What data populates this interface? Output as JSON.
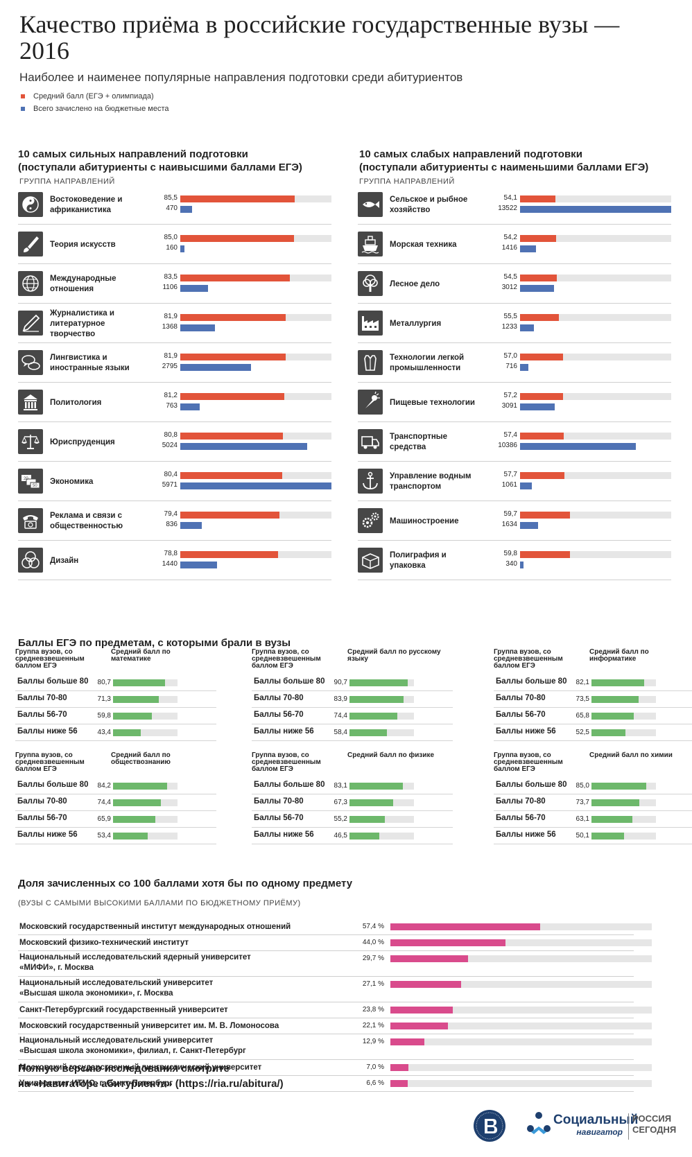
{
  "title": "Качество приёма в российские государственные вузы — 2016",
  "subtitle": "Наиболее и наименее популярные направления подготовки среди абитуриентов",
  "legend": {
    "score": "Средний балл (ЕГЭ + олимпиада)",
    "enrolled": "Всего зачислено на бюджетные места"
  },
  "colors": {
    "score": "#e2543a",
    "enrolled": "#4f72b4",
    "subject": "#6db86b",
    "share": "#d94b8c"
  },
  "strong": {
    "heading": "10 самых сильных направлений подготовки\n(поступали абитуриенты с наивысшими баллами ЕГЭ)",
    "group_label": "ГРУППА НАПРАВЛЕНИЙ"
  },
  "weak": {
    "heading": "10 самых слабых направлений подготовки\n(поступали абитуриенты с наименьшими баллами ЕГЭ)",
    "group_label": "ГРУППА НАПРАВЛЕНИЙ"
  },
  "subjects_heading": "Баллы ЕГЭ по предметам, с которыми брали в вузы",
  "universities": {
    "heading": "Доля зачисленных со 100 баллами хотя бы по одному предмету",
    "note": "(ВУЗЫ С САМЫМИ ВЫСОКИМИ БАЛЛАМИ ПО БЮДЖЕТНОМУ ПРИЁМУ)"
  },
  "footer": "Полную версию исследования смотрите\nна «Навигаторе абитуриента» (https://ria.ru/abitura/)",
  "logos": {
    "social_1": "Социальный",
    "social_2": "навигатор",
    "ria_1": "РОССИЯ",
    "ria_2": "СЕГОДНЯ"
  },
  "chart_data": [
    {
      "type": "bar",
      "title": "10 самых сильных направлений подготовки",
      "categories": [
        "Востоковедение и африканистика",
        "Теория искусств",
        "Международные отношения",
        "Журналистика и литературное творчество",
        "Лингвистика и иностранные языки",
        "Политология",
        "Юриспруденция",
        "Экономика",
        "Реклама и связи с общественностью",
        "Дизайн"
      ],
      "icons": [
        "yin-yang-icon",
        "brush-icon",
        "globe-icon",
        "pen-icon",
        "speech-bubbles-icon",
        "columns-icon",
        "scales-icon",
        "money-icon",
        "telephone-icon",
        "circles-icon"
      ],
      "series": [
        {
          "name": "Средний балл (ЕГЭ + олимпиада)",
          "values": [
            85.5,
            85.0,
            83.5,
            81.9,
            81.9,
            81.2,
            80.8,
            80.4,
            79.4,
            78.8
          ],
          "labels": [
            "85,5",
            "85,0",
            "83,5",
            "81,9",
            "81,9",
            "81,2",
            "80,8",
            "80,4",
            "79,4",
            "78,8"
          ]
        },
        {
          "name": "Всего зачислено на бюджетные места",
          "values": [
            470,
            160,
            1106,
            1368,
            2795,
            763,
            5024,
            5971,
            836,
            1440
          ],
          "labels": [
            "470",
            "160",
            "1106",
            "1368",
            "2795",
            "763",
            "5024",
            "5971",
            "836",
            "1440"
          ]
        }
      ]
    },
    {
      "type": "bar",
      "title": "10 самых слабых направлений подготовки",
      "categories": [
        "Сельское и рыбное хозяйство",
        "Морская техника",
        "Лесное дело",
        "Металлургия",
        "Технологии легкой промышленности",
        "Пищевые технологии",
        "Транспортные средства",
        "Управление водным транспортом",
        "Машиностроение",
        "Полиграфия и упаковка"
      ],
      "icons": [
        "fish-icon",
        "ship-icon",
        "tree-icon",
        "factory-icon",
        "shirt-icon",
        "ice-cream-icon",
        "truck-icon",
        "anchor-icon",
        "gears-icon",
        "package-icon"
      ],
      "series": [
        {
          "name": "Средний балл (ЕГЭ + олимпиада)",
          "values": [
            54.1,
            54.2,
            54.5,
            55.5,
            57.0,
            57.2,
            57.4,
            57.7,
            59.7,
            59.8
          ],
          "labels": [
            "54,1",
            "54,2",
            "54,5",
            "55,5",
            "57,0",
            "57,2",
            "57,4",
            "57,7",
            "59,7",
            "59,8"
          ]
        },
        {
          "name": "Всего зачислено на бюджетные места",
          "values": [
            13522,
            1416,
            3012,
            1233,
            716,
            3091,
            10386,
            1061,
            1634,
            340
          ],
          "labels": [
            "13522",
            "1416",
            "3012",
            "1233",
            "716",
            "3091",
            "10386",
            "1061",
            "1634",
            "340"
          ]
        }
      ]
    },
    {
      "type": "bar",
      "title": "Баллы ЕГЭ по предметам, с которыми брали в вузы",
      "group_header": "Группа вузов, со средневзвешенным баллом ЕГЭ",
      "categories": [
        "Баллы больше 80",
        "Баллы 70-80",
        "Баллы 56-70",
        "Баллы ниже 56"
      ],
      "subjects": [
        {
          "name": "Средний балл по математике",
          "values": [
            80.7,
            71.3,
            59.8,
            43.4
          ],
          "labels": [
            "80,7",
            "71,3",
            "59,8",
            "43,4"
          ]
        },
        {
          "name": "Средний балл по русскому языку",
          "values": [
            90.7,
            83.9,
            74.4,
            58.4
          ],
          "labels": [
            "90,7",
            "83,9",
            "74,4",
            "58,4"
          ]
        },
        {
          "name": "Средний балл по информатике",
          "values": [
            82.1,
            73.5,
            65.8,
            52.5
          ],
          "labels": [
            "82,1",
            "73,5",
            "65,8",
            "52,5"
          ]
        },
        {
          "name": "Средний балл по обществознанию",
          "values": [
            84.2,
            74.4,
            65.9,
            53.4
          ],
          "labels": [
            "84,2",
            "74,4",
            "65,9",
            "53,4"
          ]
        },
        {
          "name": "Средний балл по физике",
          "values": [
            83.1,
            67.3,
            55.2,
            46.5
          ],
          "labels": [
            "83,1",
            "67,3",
            "55,2",
            "46,5"
          ]
        },
        {
          "name": "Средний балл по химии",
          "values": [
            85.0,
            73.7,
            63.1,
            50.1
          ],
          "labels": [
            "85,0",
            "73,7",
            "63,1",
            "50,1"
          ]
        }
      ]
    },
    {
      "type": "bar",
      "title": "Доля зачисленных со 100 баллами хотя бы по одному предмету",
      "categories": [
        "Московский государственный институт международных отношений",
        "Московский физико-технический институт",
        "Национальный исследовательский ядерный университет\n«МИФИ», г. Москва",
        "Национальный исследовательский университет\n«Высшая школа экономики», г. Москва",
        "Санкт-Петербургский государственный университет",
        "Московский государственный университет им. М. В. Ломоносова",
        "Национальный исследовательский университет\n«Высшая школа экономики», филиал, г. Санкт-Петербург",
        "Московский государственный лингвистический университет",
        "Университет ИТМО, г. Санкт-Петербург"
      ],
      "values": [
        57.4,
        44.0,
        29.7,
        27.1,
        23.8,
        22.1,
        12.9,
        7.0,
        6.6
      ],
      "labels": [
        "57,4 %",
        "44,0 %",
        "29,7 %",
        "27,1 %",
        "23,8 %",
        "22,1 %",
        "12,9 %",
        "7,0 %",
        "6,6 %"
      ],
      "ylim": [
        0,
        100
      ]
    }
  ]
}
